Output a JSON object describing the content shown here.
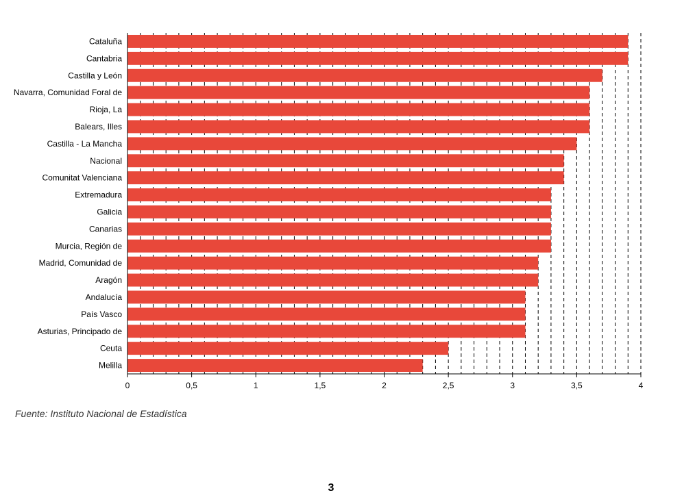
{
  "chart_data": {
    "type": "bar",
    "orientation": "horizontal",
    "categories": [
      "Cataluña",
      "Cantabria",
      "Castilla y León",
      "Navarra, Comunidad Foral de",
      "Rioja, La",
      "Balears, Illes",
      "Castilla - La Mancha",
      "Nacional",
      "Comunitat Valenciana",
      "Extremadura",
      "Galicia",
      "Canarias",
      "Murcia, Región de",
      "Madrid, Comunidad de",
      "Aragón",
      "Andalucía",
      "País Vasco",
      "Asturias, Principado de",
      "Ceuta",
      "Melilla"
    ],
    "values": [
      3.9,
      3.9,
      3.7,
      3.6,
      3.6,
      3.6,
      3.5,
      3.4,
      3.4,
      3.3,
      3.3,
      3.3,
      3.3,
      3.2,
      3.2,
      3.1,
      3.1,
      3.1,
      2.5,
      2.3
    ],
    "xlim": [
      0,
      4
    ],
    "x_ticks": [
      0,
      0.5,
      1,
      1.5,
      2,
      2.5,
      3,
      3.5,
      4
    ],
    "x_tick_labels": [
      "0",
      "0,5",
      "1",
      "1,5",
      "2",
      "2,5",
      "3",
      "3,5",
      "4"
    ],
    "gridlines": {
      "style": "dashed",
      "step": 0.1,
      "axis": "x"
    },
    "bar_color": "#e8483a",
    "title": "",
    "xlabel": "",
    "ylabel": ""
  },
  "footer": {
    "source": "Fuente: Instituto Nacional de Estadística",
    "page_number": "3"
  }
}
